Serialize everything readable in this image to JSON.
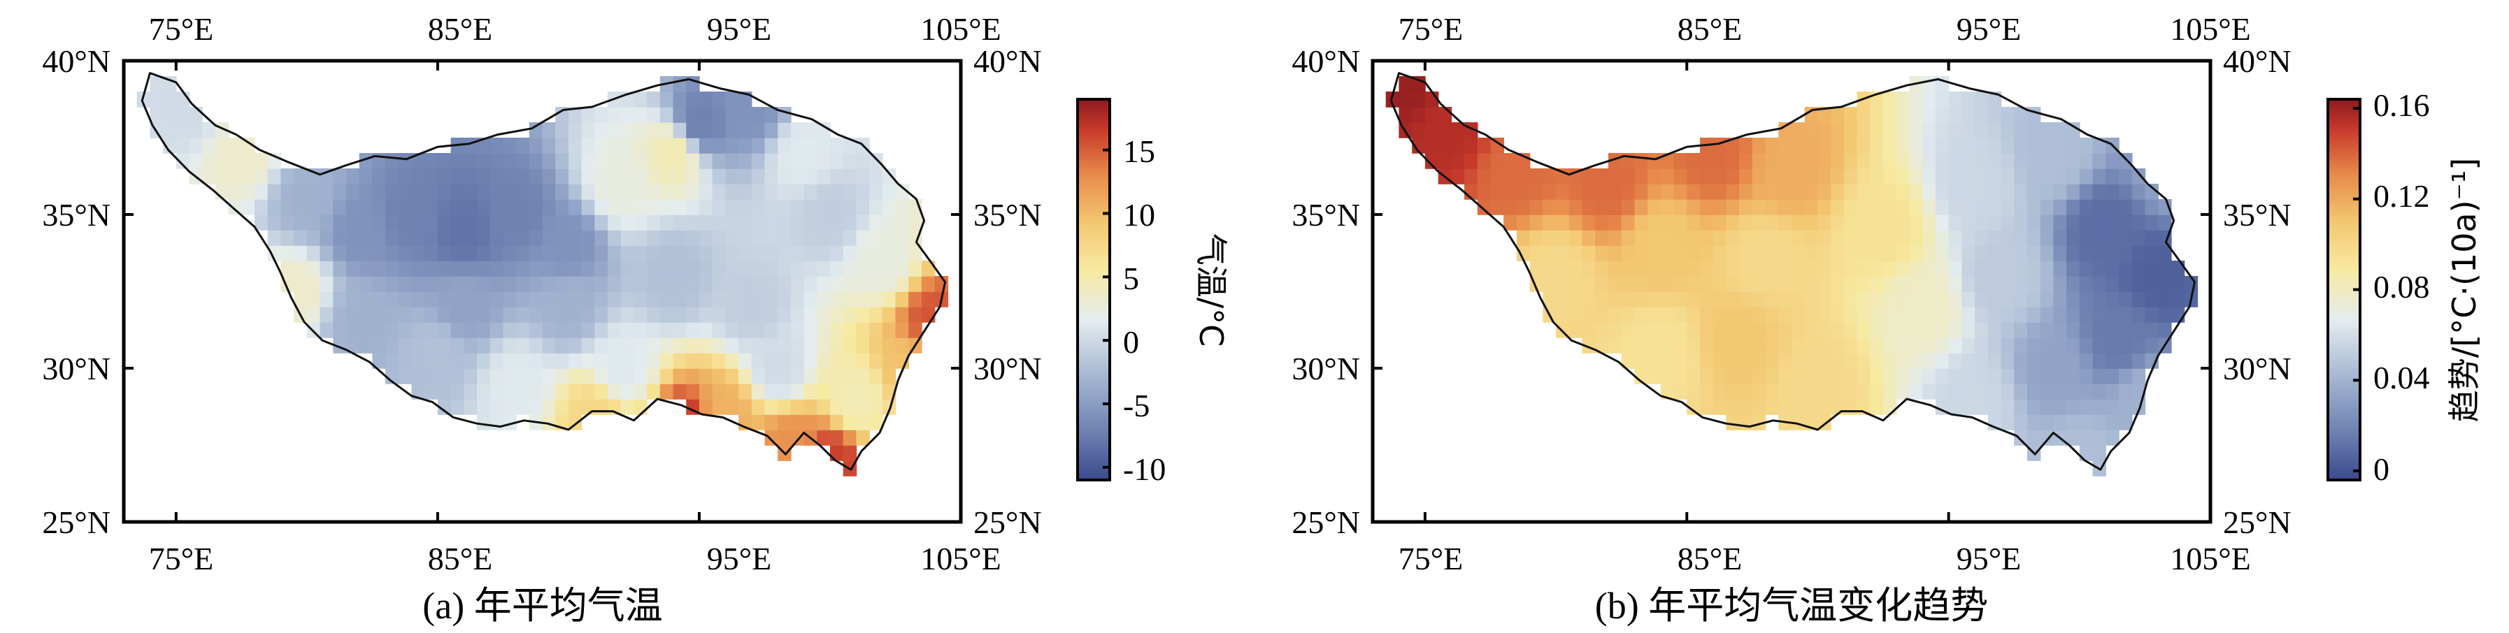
{
  "colors": {
    "colormap": [
      "#3b4a8c",
      "#6b7fb0",
      "#a9bad4",
      "#e4ecef",
      "#f7eaa2",
      "#f3c670",
      "#e88b4c",
      "#c83a2b",
      "#8e1a1f"
    ],
    "outline": "#111111"
  },
  "chart_data": [
    {
      "type": "heatmap",
      "panel": "a",
      "caption": "(a) 年平均气温",
      "xlim": [
        73,
        105
      ],
      "ylim": [
        25,
        40
      ],
      "x_ticks": [
        "75°E",
        "85°E",
        "95°E",
        "105°E"
      ],
      "y_ticks_left": [
        "25°N",
        "30°N",
        "35°N",
        "40°N"
      ],
      "y_ticks_right": [
        "25°N",
        "30°N",
        "35°N",
        "40°N"
      ],
      "colorbar": {
        "label": "气温/°C",
        "range": [
          -11,
          19
        ],
        "ticks": [
          "-10",
          "-5",
          "0",
          "5",
          "10",
          "15"
        ]
      },
      "cells": [
        {
          "lon": 75.5,
          "lat": 38.5,
          "value": -1
        },
        {
          "lon": 77.5,
          "lat": 37.0,
          "value": 2
        },
        {
          "lon": 80.0,
          "lat": 35.5,
          "value": -4
        },
        {
          "lon": 82.0,
          "lat": 34.5,
          "value": -6
        },
        {
          "lon": 84.0,
          "lat": 35.0,
          "value": -7
        },
        {
          "lon": 86.0,
          "lat": 34.5,
          "value": -8
        },
        {
          "lon": 88.0,
          "lat": 35.0,
          "value": -7
        },
        {
          "lon": 90.0,
          "lat": 34.0,
          "value": -6
        },
        {
          "lon": 92.0,
          "lat": 36.0,
          "value": 1
        },
        {
          "lon": 95.0,
          "lat": 38.0,
          "value": -7
        },
        {
          "lon": 97.0,
          "lat": 38.5,
          "value": -6
        },
        {
          "lon": 94.0,
          "lat": 37.0,
          "value": 3
        },
        {
          "lon": 99.0,
          "lat": 37.0,
          "value": 0
        },
        {
          "lon": 100.0,
          "lat": 35.0,
          "value": -2
        },
        {
          "lon": 102.0,
          "lat": 33.5,
          "value": 1
        },
        {
          "lon": 104.0,
          "lat": 31.5,
          "value": 14
        },
        {
          "lon": 103.0,
          "lat": 30.0,
          "value": 8
        },
        {
          "lon": 101.0,
          "lat": 29.0,
          "value": 3
        },
        {
          "lon": 100.0,
          "lat": 27.0,
          "value": 15
        },
        {
          "lon": 98.5,
          "lat": 27.5,
          "value": 11
        },
        {
          "lon": 96.0,
          "lat": 28.5,
          "value": 9
        },
        {
          "lon": 94.5,
          "lat": 28.0,
          "value": 16
        },
        {
          "lon": 91.0,
          "lat": 28.5,
          "value": 6
        },
        {
          "lon": 88.0,
          "lat": 29.5,
          "value": 0
        },
        {
          "lon": 85.0,
          "lat": 30.5,
          "value": -3
        },
        {
          "lon": 82.0,
          "lat": 31.5,
          "value": -4
        },
        {
          "lon": 79.5,
          "lat": 32.5,
          "value": 2
        },
        {
          "lon": 86.0,
          "lat": 32.0,
          "value": -5
        },
        {
          "lon": 90.0,
          "lat": 32.0,
          "value": -4
        },
        {
          "lon": 94.0,
          "lat": 33.0,
          "value": -3
        },
        {
          "lon": 97.0,
          "lat": 32.0,
          "value": -2
        },
        {
          "lon": 92.0,
          "lat": 30.0,
          "value": 0
        },
        {
          "lon": 98.0,
          "lat": 30.0,
          "value": -1
        }
      ]
    },
    {
      "type": "heatmap",
      "panel": "b",
      "caption": "(b) 年平均气温变化趋势",
      "xlim": [
        73,
        105
      ],
      "ylim": [
        25,
        40
      ],
      "x_ticks": [
        "75°E",
        "85°E",
        "95°E",
        "105°E"
      ],
      "y_ticks_left": [
        "25°N",
        "30°N",
        "35°N",
        "40°N"
      ],
      "y_ticks_right": [
        "25°N",
        "30°N",
        "35°N",
        "40°N"
      ],
      "colorbar": {
        "label": "趋势/[°C·(10a)⁻¹]",
        "range": [
          -0.004,
          0.164
        ],
        "ticks": [
          "0",
          "0.04",
          "0.08",
          "0.12",
          "0.16"
        ]
      },
      "cells": [
        {
          "lon": 74.5,
          "lat": 39.5,
          "value": 0.16
        },
        {
          "lon": 76.0,
          "lat": 38.0,
          "value": 0.15
        },
        {
          "lon": 78.5,
          "lat": 36.5,
          "value": 0.13
        },
        {
          "lon": 82.0,
          "lat": 36.0,
          "value": 0.13
        },
        {
          "lon": 86.0,
          "lat": 37.0,
          "value": 0.13
        },
        {
          "lon": 89.0,
          "lat": 36.5,
          "value": 0.11
        },
        {
          "lon": 80.0,
          "lat": 33.0,
          "value": 0.09
        },
        {
          "lon": 84.0,
          "lat": 34.0,
          "value": 0.1
        },
        {
          "lon": 88.0,
          "lat": 33.5,
          "value": 0.09
        },
        {
          "lon": 87.0,
          "lat": 31.0,
          "value": 0.1
        },
        {
          "lon": 84.0,
          "lat": 30.5,
          "value": 0.085
        },
        {
          "lon": 90.0,
          "lat": 29.5,
          "value": 0.09
        },
        {
          "lon": 92.5,
          "lat": 34.5,
          "value": 0.085
        },
        {
          "lon": 94.0,
          "lat": 32.0,
          "value": 0.07
        },
        {
          "lon": 96.0,
          "lat": 36.0,
          "value": 0.05
        },
        {
          "lon": 97.0,
          "lat": 33.0,
          "value": 0.045
        },
        {
          "lon": 96.0,
          "lat": 29.0,
          "value": 0.05
        },
        {
          "lon": 99.0,
          "lat": 37.0,
          "value": 0.04
        },
        {
          "lon": 101.0,
          "lat": 34.5,
          "value": 0.01
        },
        {
          "lon": 103.0,
          "lat": 33.0,
          "value": 0.005
        },
        {
          "lon": 101.5,
          "lat": 31.0,
          "value": 0.015
        },
        {
          "lon": 99.0,
          "lat": 30.0,
          "value": 0.03
        },
        {
          "lon": 100.0,
          "lat": 27.0,
          "value": 0.04
        },
        {
          "lon": 102.5,
          "lat": 29.0,
          "value": 0.035
        },
        {
          "lon": 103.5,
          "lat": 36.5,
          "value": 0.03
        }
      ]
    }
  ]
}
